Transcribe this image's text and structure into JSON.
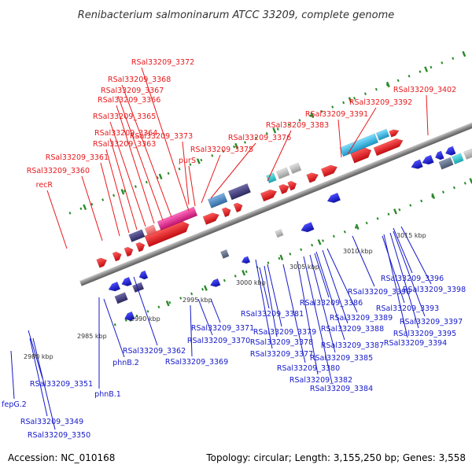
{
  "title": "Renibacterium salmoninarum ATCC 33209, complete genome",
  "accession_text": "Accession: NC_010168",
  "summary_text": "Topology: circular; Length: 3,155,250 bp; Genes: 3,558",
  "colors": {
    "top_strand_gene": "#e8191c",
    "bottom_strand_gene": "#1519c8",
    "label_top": "#e8191c",
    "label_bottom": "#1519c8",
    "backbone": "#8a8a8a",
    "feature_cyan": "#2fb6de",
    "feature_purple": "#403a7a",
    "feature_pink": "#e8278f"
  },
  "scale_ticks": [
    {
      "label": "2980 kbp"
    },
    {
      "label": "2985 kbp"
    },
    {
      "label": "2990 kbp"
    },
    {
      "label": "2995 kbp"
    },
    {
      "label": "3000 kbp"
    },
    {
      "label": "3005 kbp"
    },
    {
      "label": "3010 kbp"
    },
    {
      "label": "3015 kbp"
    }
  ],
  "top_labels": [
    {
      "text": "RSal33209_3372"
    },
    {
      "text": "RSal33209_3368"
    },
    {
      "text": "RSal33209_3367"
    },
    {
      "text": "RSal33209_3366"
    },
    {
      "text": "RSal33209_3365"
    },
    {
      "text": "RSal33209_3364"
    },
    {
      "text": "RSal33209_3363"
    },
    {
      "text": "RSal33209_3361"
    },
    {
      "text": "RSal33209_3360"
    },
    {
      "text": "recR"
    },
    {
      "text": "RSal33209_3373"
    },
    {
      "text": "purS"
    },
    {
      "text": "RSal33209_3375"
    },
    {
      "text": "RSal33209_3376"
    },
    {
      "text": "RSal33209_3383"
    },
    {
      "text": "RSal33209_3391"
    },
    {
      "text": "RSal33209_3392"
    },
    {
      "text": "RSal33209_3402"
    }
  ],
  "bottom_labels": [
    {
      "text": "RSal33209_3396"
    },
    {
      "text": "RSal33209_3398"
    },
    {
      "text": "RSal33209_3390"
    },
    {
      "text": "RSal33209_3393"
    },
    {
      "text": "RSal33209_3386"
    },
    {
      "text": "RSal33209_3397"
    },
    {
      "text": "RSal33209_3381"
    },
    {
      "text": "RSal33209_3389"
    },
    {
      "text": "RSal33209_3379"
    },
    {
      "text": "RSal33209_3388"
    },
    {
      "text": "RSal33209_3395"
    },
    {
      "text": "RSal33209_3371"
    },
    {
      "text": "RSal33209_3378"
    },
    {
      "text": "RSal33209_3370"
    },
    {
      "text": "RSal33209_3387"
    },
    {
      "text": "RSal33209_3394"
    },
    {
      "text": "RSal33209_3362"
    },
    {
      "text": "RSal33209_3377"
    },
    {
      "text": "RSal33209_3385"
    },
    {
      "text": "phnB.2"
    },
    {
      "text": "RSal33209_3369"
    },
    {
      "text": "RSal33209_3380"
    },
    {
      "text": "RSal33209_3382"
    },
    {
      "text": "phnB.1"
    },
    {
      "text": "RSal33209_3351"
    },
    {
      "text": "RSal33209_3384"
    },
    {
      "text": "fepG.2"
    },
    {
      "text": "RSal33209_3349"
    },
    {
      "text": "RSal33209_3350"
    }
  ]
}
